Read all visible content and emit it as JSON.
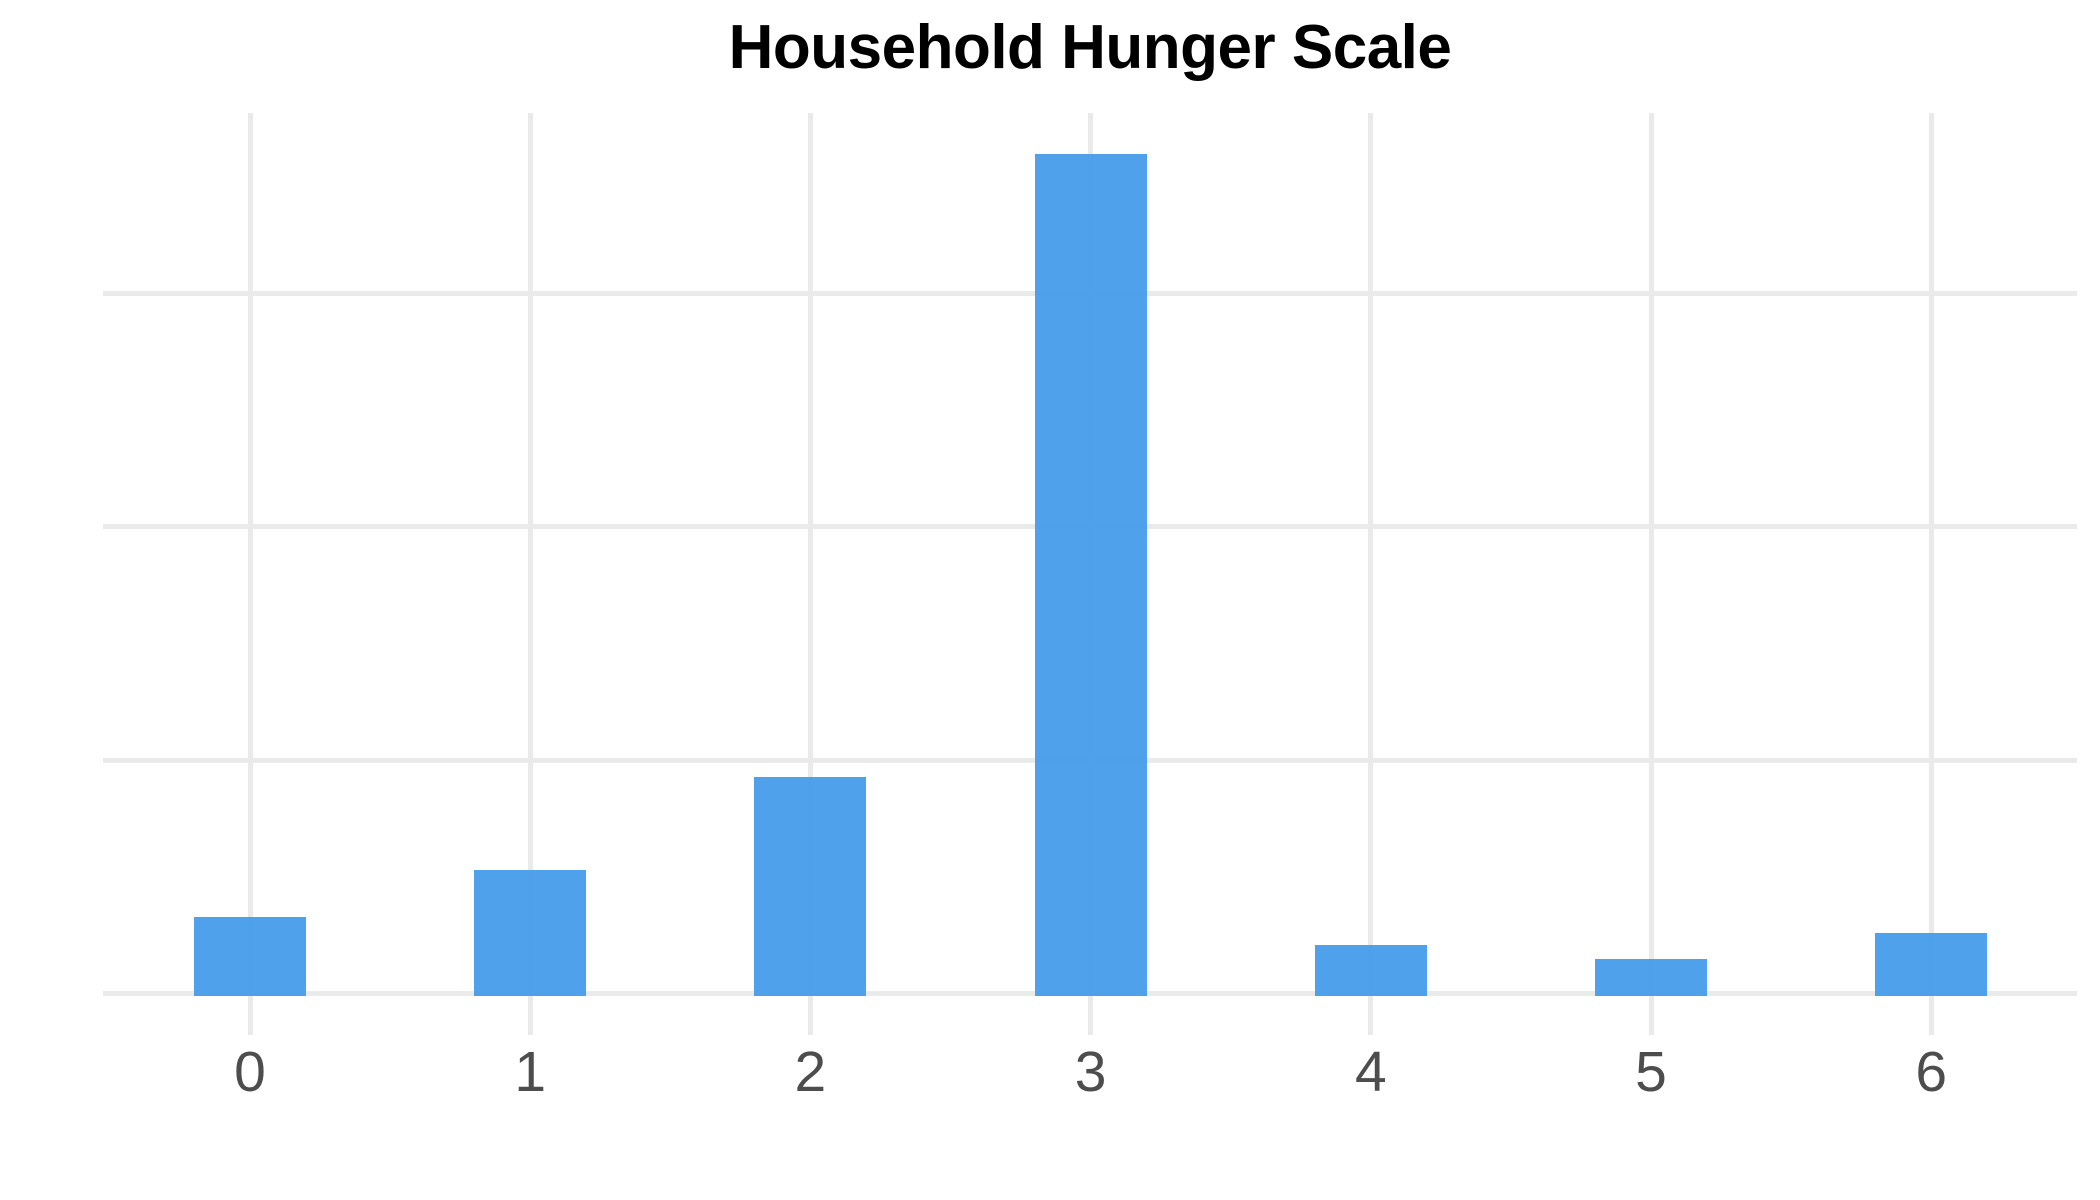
{
  "chart_data": {
    "type": "bar",
    "title": "Household Hunger Scale",
    "categories": [
      "0",
      "1",
      "2",
      "3",
      "4",
      "5",
      "6"
    ],
    "values": [
      0.34,
      0.54,
      0.94,
      3.61,
      0.22,
      0.16,
      0.27
    ],
    "value_note": "y-axis has no tick labels; values are estimated in units of one horizontal gridline interval",
    "xlabel": "",
    "ylabel": "",
    "ylim": [
      0,
      3.8
    ],
    "y_gridline_values": [
      0,
      1,
      2,
      3
    ],
    "grid": "major x and y gridlines, light gray, no axis lines, no y tick labels",
    "legend": "none",
    "colors": {
      "bar": "#459CE9",
      "gridline": "#EAEAEA",
      "tick_label": "#4D4D4D",
      "title": "#000000",
      "background": "#FFFFFF"
    }
  }
}
